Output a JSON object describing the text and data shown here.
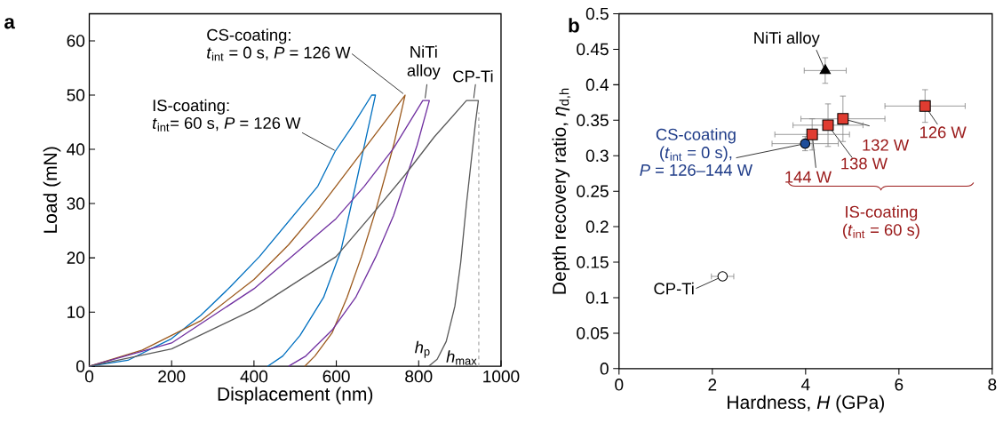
{
  "chart_data": [
    {
      "type": "line",
      "title": "**a**",
      "xlabel": "Displacement (nm)",
      "ylabel": "Load (mN)",
      "xlim": [
        0,
        1000
      ],
      "ylim": [
        0,
        65
      ],
      "xticks": [
        0,
        200,
        400,
        600,
        800,
        1000
      ],
      "yticks": [
        0,
        10,
        20,
        30,
        40,
        50,
        60
      ],
      "series": [
        {
          "color": "#0070c0",
          "x": [
            0,
            93.6,
            200,
            271,
            342,
            413,
            484,
            555,
            597,
            640,
            686,
            695,
            668,
            640,
            611,
            569,
            512,
            470,
            433
          ],
          "values": [
            0,
            1.1,
            5.1,
            9.4,
            14.6,
            20.2,
            26.7,
            33.2,
            39.6,
            44.4,
            50,
            50,
            40.7,
            31,
            21.3,
            12.7,
            5.7,
            1.9,
            0
          ]
        },
        {
          "color": "#9c5a1e",
          "x": [
            0,
            129,
            271,
            400,
            484,
            555,
            599,
            696,
            767,
            739,
            696,
            661,
            626,
            590,
            548,
            523
          ],
          "values": [
            0,
            3,
            8.4,
            16,
            22.4,
            28.8,
            33.2,
            42.9,
            50,
            40.7,
            28.8,
            20.2,
            12.7,
            6.2,
            1.9,
            0
          ]
        },
        {
          "color": "#7030a0",
          "x": [
            0,
            200,
            400,
            599,
            668,
            739,
            810,
            826,
            796,
            767,
            739,
            696,
            647,
            590,
            526,
            484
          ],
          "values": [
            0,
            4.3,
            14.3,
            27.2,
            33.2,
            40.2,
            49,
            49,
            40.7,
            34.2,
            27.8,
            20.2,
            12.7,
            6.7,
            1.9,
            0
          ]
        },
        {
          "color": "#595959",
          "x": [
            0,
            200,
            400,
            599,
            696,
            767,
            838,
            916,
            945,
            938,
            916,
            902,
            888,
            867,
            845,
            824
          ],
          "values": [
            0,
            3.2,
            10.5,
            20.2,
            28.8,
            35.3,
            42.3,
            49,
            49,
            45,
            29.9,
            19.1,
            11.1,
            4.6,
            1.3,
            0
          ]
        }
      ],
      "ref_lines": [
        {
          "axis": "x",
          "value": 946,
          "label": "*h*$_{max}$",
          "color": "#a6a6a6",
          "line_style": "dashed"
        }
      ],
      "annotations": [
        "CS-coating:",
        {
          "text": "*t*$_{int}$ = 0 s, *P* = 126 W",
          "x": 767,
          "y": 50
        },
        "IS-coating:",
        {
          "text": "*t*$_{int}$= 60 s, *P* = 126 W",
          "x": 601,
          "y": 39.6
        },
        {
          "text": "NiTi alloy",
          "x": 815,
          "y": 49
        },
        {
          "text": "CP-Ti",
          "x": 933,
          "y": 49
        },
        {
          "text": "*h*$_{p}$",
          "x": 824,
          "y": 0
        }
      ]
    },
    {
      "type": "scatter",
      "title": "**b**",
      "xlabel": "Hardness, *H* (GPa)",
      "ylabel": "Depth recovery ratio, *η*$_{d,h}$",
      "xlim": [
        0,
        8
      ],
      "ylim": [
        0,
        0.5
      ],
      "xticks": [
        0,
        2,
        4,
        6,
        8
      ],
      "yticks": [
        0,
        0.05,
        0.1,
        0.15,
        0.2,
        0.25,
        0.3,
        0.35,
        0.4,
        0.45,
        0.5
      ],
      "series": [
        {
          "color": "#ffffff",
          "marker": "circle",
          "x": [
            2.22
          ],
          "values": [
            0.13
          ],
          "errors": [
            0.005
          ],
          "xerrors": [
            0.24
          ]
        },
        {
          "color": "#000000",
          "marker": "triangle",
          "x": [
            4.42
          ],
          "values": [
            0.42
          ],
          "errors": [
            0.018
          ],
          "xerrors": [
            0.45
          ]
        },
        {
          "color": "#1f4e9a",
          "marker": "circle",
          "x": [
            3.99
          ],
          "values": [
            0.317
          ],
          "errors": [
            0.01
          ],
          "xerrors": [
            0.71
          ]
        },
        {
          "color": "#e03c31",
          "marker": "square",
          "x": [
            4.14,
            4.48,
            4.8,
            6.56
          ],
          "values": [
            0.33,
            0.343,
            0.352,
            0.37
          ],
          "errors": [
            0.022,
            0.03,
            0.032,
            0.023
          ],
          "xerrors": [
            0.8,
            0.75,
            0.9,
            0.86
          ]
        }
      ],
      "annotations": [
        {
          "text": "NiTi alloy",
          "x": 4.42,
          "y": 0.42
        },
        {
          "text": "CP-Ti",
          "x": 2.22,
          "y": 0.13
        },
        {
          "text": "CS-coating",
          "x": 3.99,
          "y": 0.317
        },
        "(*t*$_{int}$ = 0 s),",
        "*P* = 126–144 W",
        {
          "text": "144 W",
          "x": 4.14,
          "y": 0.33
        },
        {
          "text": "138 W",
          "x": 4.48,
          "y": 0.343
        },
        {
          "text": "132 W",
          "x": 4.8,
          "y": 0.352
        },
        {
          "text": "126 W",
          "x": 6.56,
          "y": 0.37
        },
        "IS-coating",
        "(*t*$_{int}$ = 60 s)"
      ]
    }
  ]
}
